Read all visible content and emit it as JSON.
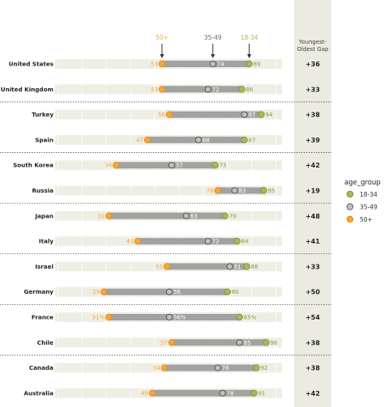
{
  "chart_data": {
    "type": "dot-range",
    "xlim": [
      0,
      100
    ],
    "grid": true,
    "gap_header": [
      "Youngest-",
      "Oldest Gap"
    ],
    "group_headers": [
      "50+",
      "35-49",
      "18-34"
    ],
    "legend": {
      "title": "age_group",
      "placement": "right",
      "items": [
        "18-34",
        "35-49",
        "50+"
      ]
    },
    "colors": {
      "age_18_34": "#a8b85a",
      "age_35_49": "#c0c0c0",
      "age_50_plus": "#f5a63c",
      "band": "#eeeee4",
      "bar": "#a2a2a2",
      "gap_column": "#ebebe1"
    },
    "rows": [
      {
        "country": "United States",
        "young": 89,
        "young_label": "89",
        "middle": 74,
        "middle_label": "74",
        "old": 53,
        "old_label": "53",
        "gap": "+36"
      },
      {
        "country": "United Kingdom",
        "young": 86,
        "young_label": "86",
        "middle": 72,
        "middle_label": "72",
        "old": 53,
        "old_label": "53",
        "gap": "+33"
      },
      {
        "country": "Turkey",
        "young": 94,
        "young_label": "94",
        "middle": 87,
        "middle_label": "87",
        "old": 56,
        "old_label": "56",
        "gap": "+38"
      },
      {
        "country": "Spain",
        "young": 87,
        "young_label": "87",
        "middle": 68,
        "middle_label": "68",
        "old": 47,
        "old_label": "47",
        "gap": "+39"
      },
      {
        "country": "South Korea",
        "young": 75,
        "young_label": "75",
        "middle": 57,
        "middle_label": "57",
        "old": 34,
        "old_label": "34",
        "gap": "+42"
      },
      {
        "country": "Russia",
        "young": 95,
        "young_label": "95",
        "middle": 83,
        "middle_label": "83",
        "old": 76,
        "old_label": "76",
        "gap": "+19"
      },
      {
        "country": "Japan",
        "young": 79,
        "young_label": "79",
        "middle": 63,
        "middle_label": "63",
        "old": 31,
        "old_label": "31",
        "gap": "+48"
      },
      {
        "country": "Italy",
        "young": 84,
        "young_label": "84",
        "middle": 72,
        "middle_label": "72",
        "old": 43,
        "old_label": "43",
        "gap": "+41"
      },
      {
        "country": "Israel",
        "young": 88,
        "young_label": "88",
        "middle": 81,
        "middle_label": "81",
        "old": 55,
        "old_label": "55",
        "gap": "+33"
      },
      {
        "country": "Germany",
        "young": 80,
        "young_label": "80",
        "middle": 56,
        "middle_label": "56",
        "old": 29,
        "old_label": "29",
        "gap": "+50"
      },
      {
        "country": "France",
        "young": 85,
        "young_label": "85%",
        "middle": 56,
        "middle_label": "56%",
        "old": 31,
        "old_label": "31%",
        "gap": "+54"
      },
      {
        "country": "Chile",
        "young": 96,
        "young_label": "96",
        "middle": 85,
        "middle_label": "85",
        "old": 57,
        "old_label": "57",
        "gap": "+38"
      },
      {
        "country": "Canada",
        "young": 92,
        "young_label": "92",
        "middle": 76,
        "middle_label": "76",
        "old": 54,
        "old_label": "54",
        "gap": "+38"
      },
      {
        "country": "Australia",
        "young": 91,
        "young_label": "91",
        "middle": 78,
        "middle_label": "78",
        "old": 49,
        "old_label": "49",
        "gap": "+42"
      }
    ]
  }
}
